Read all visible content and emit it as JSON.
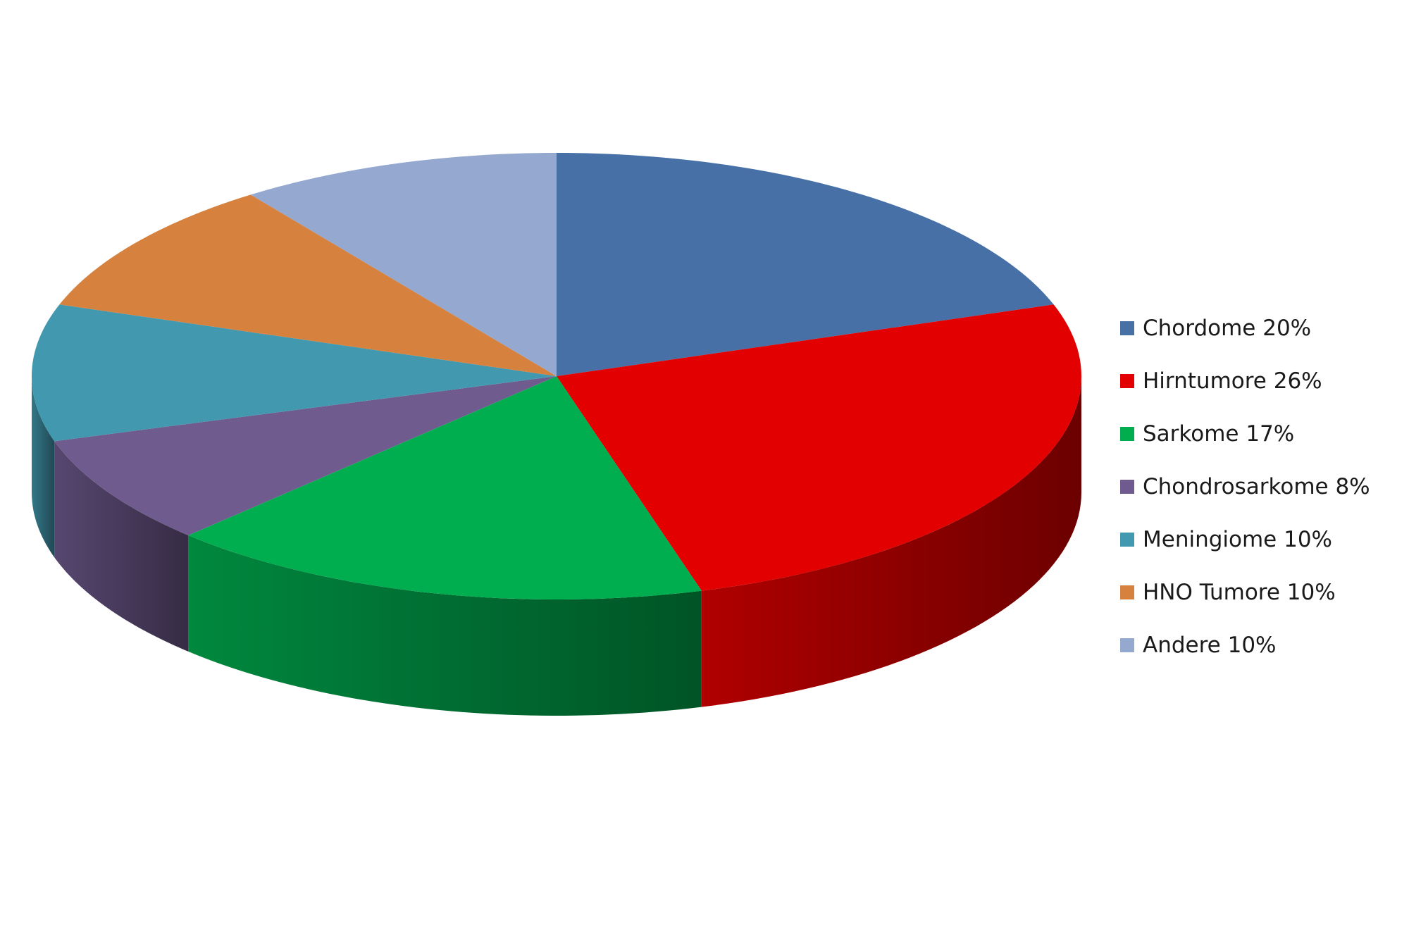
{
  "chart_data": {
    "type": "pie",
    "style": "3d",
    "legend_position": "right",
    "slices": [
      {
        "label": "Chordome 20%",
        "value": 20,
        "color": "#4670A6"
      },
      {
        "label": "Hirntumore 26%",
        "value": 26,
        "color": "#E20000"
      },
      {
        "label": "Sarkome 17%",
        "value": 17,
        "color": "#00AE4F"
      },
      {
        "label": "Chondrosarkome 8%",
        "value": 8,
        "color": "#705B8F"
      },
      {
        "label": "Meningiome 10%",
        "value": 10,
        "color": "#4298AE"
      },
      {
        "label": "HNO Tumore 10%",
        "value": 10,
        "color": "#D6823E"
      },
      {
        "label": "Andere 10%",
        "value": 10,
        "color": "#94A8D0"
      }
    ]
  }
}
